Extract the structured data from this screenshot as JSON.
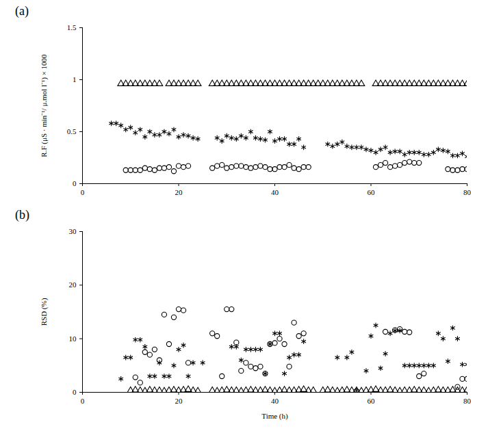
{
  "chart_data": [
    {
      "type": "scatter",
      "title": "(a)",
      "ylabel": "R.F (μS · min⁻¹/ μ.mol l⁻¹) × 1000",
      "xlim": [
        0,
        80
      ],
      "xticks": [
        0,
        20,
        40,
        60,
        80
      ],
      "ylim": [
        0,
        1.5
      ],
      "yticks": [
        0,
        0.5,
        1,
        1.5
      ],
      "grid": false,
      "series": [
        {
          "marker": "triangle",
          "color": "#000000",
          "x": [
            8,
            9,
            10,
            11,
            12,
            13,
            14,
            15,
            16,
            18,
            19,
            20,
            21,
            22,
            23,
            24,
            27,
            28,
            29,
            30,
            31,
            32,
            33,
            34,
            35,
            36,
            37,
            38,
            39,
            40,
            41,
            42,
            43,
            44,
            45,
            46,
            47,
            48,
            49,
            50,
            51,
            52,
            53,
            54,
            55,
            56,
            57,
            58,
            61,
            62,
            63,
            64,
            65,
            66,
            67,
            68,
            69,
            70,
            71,
            72,
            73,
            74,
            75,
            76,
            77,
            78,
            79,
            80
          ],
          "values": [
            0.96,
            0.96,
            0.96,
            0.96,
            0.96,
            0.96,
            0.96,
            0.96,
            0.96,
            0.96,
            0.96,
            0.96,
            0.96,
            0.96,
            0.96,
            0.96,
            0.96,
            0.96,
            0.96,
            0.96,
            0.96,
            0.96,
            0.96,
            0.96,
            0.96,
            0.96,
            0.96,
            0.96,
            0.96,
            0.96,
            0.96,
            0.96,
            0.96,
            0.96,
            0.96,
            0.96,
            0.96,
            0.96,
            0.96,
            0.96,
            0.96,
            0.96,
            0.96,
            0.96,
            0.96,
            0.96,
            0.96,
            0.96,
            0.96,
            0.96,
            0.96,
            0.96,
            0.96,
            0.96,
            0.96,
            0.96,
            0.96,
            0.96,
            0.96,
            0.96,
            0.96,
            0.96,
            0.96,
            0.96,
            0.96,
            0.96,
            0.96,
            0.96
          ]
        },
        {
          "marker": "asterisk",
          "color": "#000000",
          "x": [
            6,
            7,
            8,
            9,
            10,
            11,
            12,
            13,
            14,
            15,
            16,
            17,
            18,
            19,
            20,
            21,
            22,
            23,
            24,
            28,
            29,
            30,
            31,
            32,
            33,
            34,
            35,
            36,
            37,
            38,
            39,
            40,
            41,
            42,
            43,
            44,
            45,
            46,
            51,
            52,
            53,
            54,
            55,
            56,
            57,
            58,
            59,
            60,
            61,
            62,
            63,
            64,
            65,
            66,
            67,
            68,
            69,
            70,
            71,
            72,
            73,
            74,
            75,
            76,
            77,
            78,
            79,
            80
          ],
          "values": [
            0.58,
            0.58,
            0.56,
            0.52,
            0.54,
            0.49,
            0.52,
            0.45,
            0.5,
            0.47,
            0.47,
            0.5,
            0.48,
            0.52,
            0.45,
            0.47,
            0.46,
            0.44,
            0.43,
            0.44,
            0.41,
            0.46,
            0.44,
            0.43,
            0.46,
            0.44,
            0.5,
            0.44,
            0.43,
            0.42,
            0.5,
            0.41,
            0.43,
            0.43,
            0.38,
            0.38,
            0.43,
            0.35,
            0.38,
            0.36,
            0.38,
            0.4,
            0.36,
            0.35,
            0.35,
            0.35,
            0.33,
            0.32,
            0.3,
            0.33,
            0.35,
            0.3,
            0.31,
            0.31,
            0.28,
            0.3,
            0.3,
            0.3,
            0.28,
            0.28,
            0.3,
            0.33,
            0.32,
            0.31,
            0.27,
            0.27,
            0.29,
            0.26
          ]
        },
        {
          "marker": "circle",
          "color": "#000000",
          "x": [
            9,
            10,
            11,
            12,
            13,
            14,
            15,
            16,
            17,
            18,
            19,
            20,
            21,
            22,
            27,
            28,
            29,
            30,
            31,
            32,
            33,
            34,
            35,
            36,
            37,
            38,
            39,
            40,
            41,
            42,
            43,
            44,
            45,
            46,
            47,
            61,
            62,
            63,
            64,
            65,
            66,
            67,
            68,
            69,
            70,
            76,
            77,
            78,
            79,
            80
          ],
          "values": [
            0.13,
            0.13,
            0.13,
            0.13,
            0.15,
            0.14,
            0.13,
            0.15,
            0.15,
            0.16,
            0.12,
            0.17,
            0.16,
            0.17,
            0.15,
            0.17,
            0.18,
            0.15,
            0.16,
            0.17,
            0.17,
            0.16,
            0.15,
            0.16,
            0.17,
            0.16,
            0.14,
            0.14,
            0.16,
            0.16,
            0.18,
            0.15,
            0.14,
            0.16,
            0.16,
            0.16,
            0.18,
            0.2,
            0.16,
            0.17,
            0.18,
            0.2,
            0.21,
            0.2,
            0.2,
            0.14,
            0.13,
            0.13,
            0.14,
            0.14
          ]
        }
      ]
    },
    {
      "type": "scatter",
      "title": "(b)",
      "xlabel": "Time (h)",
      "ylabel": "RSD (%)",
      "xlim": [
        0,
        80
      ],
      "xticks": [
        0,
        20,
        40,
        60,
        80
      ],
      "ylim": [
        0,
        30
      ],
      "yticks": [
        0,
        10,
        20,
        30
      ],
      "grid": false,
      "series": [
        {
          "marker": "triangle",
          "color": "#000000",
          "x": [
            10,
            11,
            12,
            13,
            14,
            15,
            16,
            17,
            18,
            19,
            20,
            21,
            22,
            23,
            24,
            27,
            28,
            29,
            30,
            31,
            32,
            33,
            34,
            35,
            36,
            37,
            38,
            39,
            40,
            41,
            42,
            43,
            44,
            45,
            46,
            47,
            48,
            50,
            51,
            52,
            53,
            54,
            55,
            56,
            57,
            58,
            59,
            60,
            61,
            62,
            63,
            64,
            65,
            66,
            67,
            68,
            69,
            70,
            71,
            72,
            73,
            74,
            75,
            76,
            77,
            78,
            79,
            80
          ],
          "values": [
            0.3,
            0.4,
            0.3,
            0.2,
            0.4,
            0.3,
            0.3,
            0.2,
            0.3,
            0.4,
            0.3,
            0.4,
            0.5,
            0.3,
            0.2,
            0.3,
            0.2,
            0.3,
            0.4,
            0.3,
            0.3,
            0.2,
            0.3,
            0.4,
            0.3,
            0.3,
            0.4,
            0.3,
            0.2,
            0.3,
            0.4,
            0.3,
            0.3,
            0.4,
            0.5,
            0.3,
            0.3,
            0.3,
            0.4,
            0.3,
            0.2,
            0.3,
            0.4,
            0.3,
            0.3,
            0.2,
            0.3,
            0.4,
            0.5,
            0.3,
            0.3,
            0.4,
            0.3,
            0.2,
            0.3,
            0.3,
            0.4,
            0.3,
            0.3,
            0.2,
            0.3,
            0.4,
            0.3,
            0.3,
            0.4,
            0.3,
            0.3,
            0.4
          ]
        },
        {
          "marker": "asterisk",
          "color": "#000000",
          "x": [
            8,
            9,
            10,
            11,
            12,
            13,
            14,
            15,
            16,
            17,
            18,
            19,
            20,
            21,
            22,
            23,
            25,
            31,
            32,
            33,
            34,
            35,
            36,
            37,
            38,
            39,
            40,
            41,
            42,
            43,
            44,
            45,
            46,
            53,
            55,
            56,
            57,
            59,
            60,
            61,
            62,
            63,
            64,
            65,
            66,
            67,
            68,
            69,
            70,
            71,
            72,
            73,
            74,
            75,
            76,
            77,
            78,
            79,
            80
          ],
          "values": [
            2.5,
            6.5,
            6.5,
            9.8,
            9.8,
            8.5,
            3,
            3,
            5.5,
            3,
            3,
            5,
            8,
            8.8,
            3,
            5.5,
            5.5,
            8.5,
            8.5,
            6,
            8,
            8,
            8,
            8,
            3.5,
            9,
            11,
            11,
            3.5,
            6.5,
            7,
            7,
            9.5,
            6.5,
            6.5,
            7.5,
            0.3,
            4,
            10.5,
            12.5,
            4.5,
            7.2,
            11,
            11.5,
            11.5,
            5,
            5,
            5,
            5,
            5,
            5,
            5,
            11,
            10,
            5.8,
            12,
            10,
            5.2,
            5.2
          ]
        },
        {
          "marker": "circle",
          "color": "#000000",
          "x": [
            11,
            12,
            13,
            14,
            15,
            16,
            17,
            18,
            19,
            20,
            21,
            22,
            27,
            28,
            29,
            30,
            31,
            32,
            33,
            34,
            35,
            36,
            37,
            38,
            39,
            40,
            41,
            42,
            43,
            44,
            45,
            46,
            57,
            63,
            65,
            66,
            67,
            68,
            70,
            71,
            78,
            79,
            80
          ],
          "values": [
            2.8,
            1.8,
            7.5,
            7,
            8,
            6,
            14.5,
            9,
            14,
            15.5,
            15.3,
            5.5,
            11,
            10.5,
            3,
            15.5,
            15.5,
            9.3,
            4,
            5.5,
            4.8,
            4.5,
            4.8,
            3.5,
            9,
            9.2,
            10,
            9,
            4.8,
            13,
            10.5,
            11,
            0.2,
            11.3,
            11.6,
            11.8,
            11.3,
            11.2,
            3,
            3.5,
            1,
            2.5,
            2.5
          ]
        }
      ]
    }
  ]
}
